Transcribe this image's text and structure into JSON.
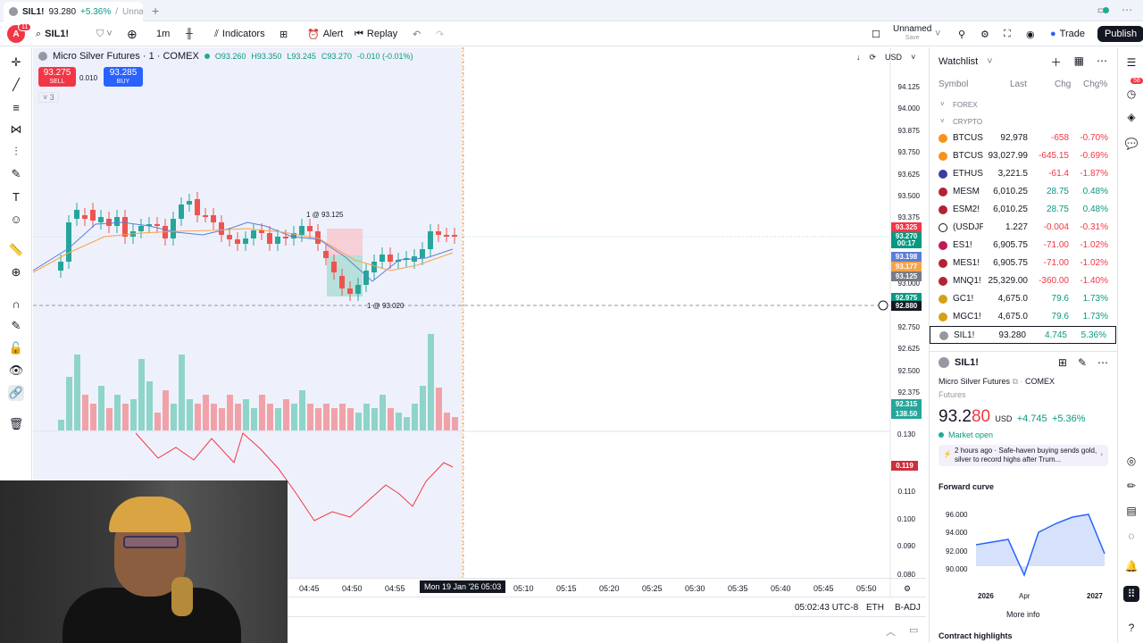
{
  "tab": {
    "symbol": "SIL1!",
    "price": "93.280",
    "change": "+5.36%",
    "sep": "/",
    "layout": "Unnar"
  },
  "toolbar": {
    "avatar": "A",
    "notifications": "11",
    "symbol": "SIL1!",
    "interval": "1m",
    "indicators": "Indicators",
    "alert": "Alert",
    "replay": "Replay",
    "layout_name": "Unnamed",
    "layout_save": "Save",
    "trade": "Trade",
    "publish": "Publish"
  },
  "legend": {
    "title": "Micro Silver Futures · 1 · COMEX",
    "o": "O93.260",
    "h": "H93.350",
    "l": "L93.245",
    "c": "C93.270",
    "chg": "-0.010 (-0.01%)"
  },
  "trade": {
    "sell_price": "93.275",
    "sell": "SELL",
    "spread": "0.010",
    "buy_price": "93.285",
    "buy": "BUY",
    "collapsed": "3"
  },
  "chart_annotations": {
    "entry": "1 @ 93.125",
    "exit": "1 @ 93.020"
  },
  "price_axis": {
    "currency": "USD",
    "labels": [
      "94.125",
      "94.000",
      "93.875",
      "93.750",
      "93.625",
      "93.500",
      "93.375",
      "93.000",
      "92.750",
      "92.625",
      "92.500",
      "92.375"
    ]
  },
  "price_tags": {
    "t1": "93.325",
    "t2": "93.270",
    "t2b": "00:17",
    "t3": "93.198",
    "t4": "93.177",
    "t5": "93.125",
    "t6": "92.975",
    "crosshair": "92.880",
    "vol1": "92.315",
    "vol2": "138.50"
  },
  "osc_axis": {
    "labels": [
      "0.130",
      "0.110",
      "0.100",
      "0.090",
      "0.080"
    ],
    "current": "0.119"
  },
  "time_axis": {
    "labels": [
      "04:45",
      "04:50",
      "04:55",
      "05:10",
      "05:15",
      "05:20",
      "05:25",
      "05:30",
      "05:35",
      "05:40",
      "05:45",
      "05:50"
    ],
    "crosshair": "Mon 19 Jan '26   05:03"
  },
  "status": {
    "time": "05:02:43 UTC-8",
    "session": "ETH",
    "adj": "B-ADJ"
  },
  "watchlist": {
    "title": "Watchlist",
    "cols": {
      "symbol": "Symbol",
      "last": "Last",
      "chg": "Chg",
      "pct": "Chg%"
    },
    "sections": {
      "forex": "FOREX",
      "crypto": "CRYPTO"
    },
    "rows": [
      {
        "sym": "BTCUSD",
        "last": "92,978",
        "chg": "-658",
        "pct": "-0.70%",
        "dir": "dn",
        "color": "#f7931a"
      },
      {
        "sym": "BTCUSD",
        "last": "93,027.99",
        "chg": "-645.15",
        "pct": "-0.69%",
        "dir": "dn",
        "color": "#f7931a"
      },
      {
        "sym": "ETHUSD",
        "last": "3,221.5",
        "chg": "-61.4",
        "pct": "-1.87%",
        "dir": "dn",
        "color": "#3c3c9b"
      },
      {
        "sym": "MESM",
        "last": "6,010.25",
        "chg": "28.75",
        "pct": "0.48%",
        "dir": "up",
        "color": "#b22234"
      },
      {
        "sym": "ESM2!",
        "last": "6,010.25",
        "chg": "28.75",
        "pct": "0.48%",
        "dir": "up",
        "color": "#b22234"
      },
      {
        "sym": "(USDJP",
        "last": "1.227",
        "chg": "-0.004",
        "pct": "-0.31%",
        "dir": "dn",
        "color": "#ffffff"
      },
      {
        "sym": "ES1!",
        "last": "6,905.75",
        "chg": "-71.00",
        "pct": "-1.02%",
        "dir": "dn",
        "color": "#c2185b"
      },
      {
        "sym": "MES1!",
        "last": "6,905.75",
        "chg": "-71.00",
        "pct": "-1.02%",
        "dir": "dn",
        "color": "#b22234"
      },
      {
        "sym": "MNQ1!",
        "last": "25,329.00",
        "chg": "-360.00",
        "pct": "-1.40%",
        "dir": "dn",
        "color": "#b22234"
      },
      {
        "sym": "GC1!",
        "last": "4,675.0",
        "chg": "79.6",
        "pct": "1.73%",
        "dir": "up",
        "color": "#d4a017"
      },
      {
        "sym": "MGC1!",
        "last": "4,675.0",
        "chg": "79.6",
        "pct": "1.73%",
        "dir": "up",
        "color": "#d4a017"
      },
      {
        "sym": "SIL1!",
        "last": "93.280",
        "chg": "4.745",
        "pct": "5.36%",
        "dir": "up",
        "color": "#9598a1"
      }
    ]
  },
  "details": {
    "symbol": "SIL1!",
    "name": "Micro Silver Futures",
    "exchange": "COMEX",
    "type": "Futures",
    "price_main": "93.2",
    "price_tail": "80",
    "currency": "USD",
    "change": "+4.745",
    "change_pct": "+5.36%",
    "market": "Market open",
    "news": "2 hours ago · Safe-haven buying sends gold, silver to record highs after Trum...",
    "forward_curve": "Forward curve",
    "fc_y": [
      "96.000",
      "94.000",
      "92.000",
      "90.000"
    ],
    "fc_x": [
      "2026",
      "Apr",
      "2027"
    ],
    "more_info": "More info",
    "contract": "Contract highlights"
  },
  "sidebar_badge": "58",
  "colors": {
    "up": "#26a69a",
    "down": "#ef5350",
    "accent": "#2962ff"
  }
}
